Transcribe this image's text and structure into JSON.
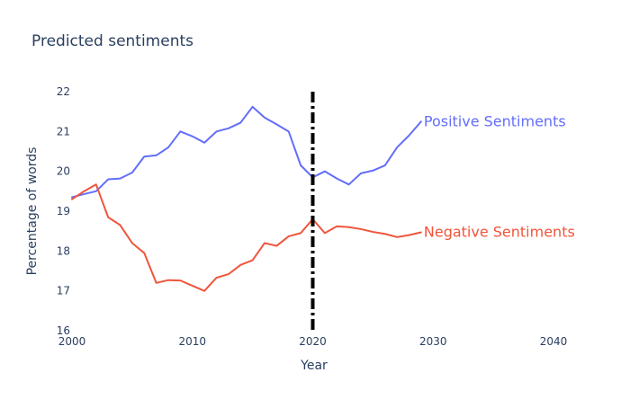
{
  "chart_data": {
    "type": "line",
    "title": "Predicted sentiments",
    "xlabel": "Year",
    "ylabel": "Percentage of words",
    "xlim": [
      2000,
      2040
    ],
    "ylim": [
      16,
      22
    ],
    "xticks": [
      2000,
      2010,
      2020,
      2030,
      2040
    ],
    "yticks": [
      16,
      17,
      18,
      19,
      20,
      21,
      22
    ],
    "grid": false,
    "legend": "none",
    "x": [
      2000,
      2001,
      2002,
      2003,
      2004,
      2005,
      2006,
      2007,
      2008,
      2009,
      2010,
      2011,
      2012,
      2013,
      2014,
      2015,
      2016,
      2017,
      2018,
      2019,
      2020,
      2021,
      2022,
      2023,
      2024,
      2025,
      2026,
      2027,
      2028,
      2029
    ],
    "series": [
      {
        "name": "Positive Sentiments",
        "color": "#636efa",
        "values": [
          19.35,
          19.43,
          19.5,
          19.8,
          19.82,
          19.97,
          20.37,
          20.4,
          20.6,
          21.0,
          20.88,
          20.72,
          21.0,
          21.08,
          21.22,
          21.62,
          21.35,
          21.18,
          21.0,
          20.15,
          19.85,
          20.0,
          19.82,
          19.67,
          19.95,
          20.02,
          20.15,
          20.6,
          20.9,
          21.25
        ]
      },
      {
        "name": "Negative Sentiments",
        "color": "#ef553b",
        "values": [
          19.3,
          19.5,
          19.67,
          18.85,
          18.65,
          18.2,
          17.95,
          17.2,
          17.27,
          17.26,
          17.13,
          17.0,
          17.33,
          17.42,
          17.65,
          17.77,
          18.2,
          18.13,
          18.37,
          18.45,
          18.8,
          18.45,
          18.62,
          18.6,
          18.55,
          18.48,
          18.43,
          18.35,
          18.4,
          18.47
        ]
      }
    ],
    "annotations": [
      {
        "text": "Positive Sentiments",
        "x": 2029,
        "y": 21.25,
        "color": "#636efa"
      },
      {
        "text": "Negative Sentiments",
        "x": 2029,
        "y": 18.47,
        "color": "#ef553b"
      }
    ],
    "vline": {
      "x": 2020,
      "from": 16,
      "to": 22,
      "color": "#000000",
      "style": "dashdot"
    }
  }
}
